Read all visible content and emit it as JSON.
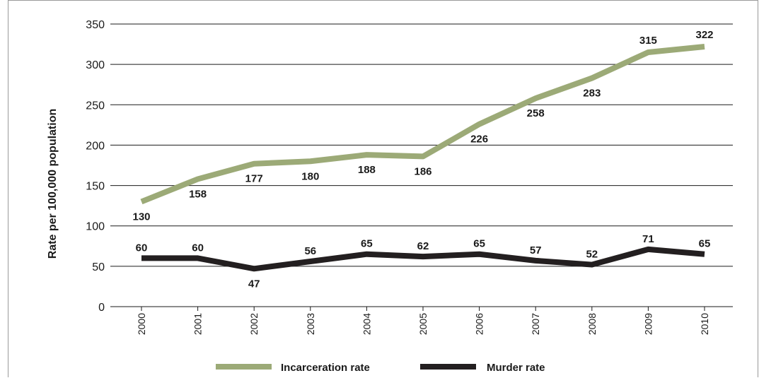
{
  "chart_data": {
    "type": "line",
    "x": [
      "2000",
      "2001",
      "2002",
      "2003",
      "2004",
      "2005",
      "2006",
      "2007",
      "2008",
      "2009",
      "2010"
    ],
    "ylabel": "Rate per 100,000 population",
    "ylim": [
      0,
      350
    ],
    "yticks": [
      "0",
      "50",
      "100",
      "150",
      "200",
      "250",
      "300",
      "350"
    ],
    "grid": "horizontal",
    "legend_position": "bottom",
    "series": [
      {
        "name": "Incarceration rate",
        "color": "#9caa77",
        "values": [
          130,
          158,
          177,
          180,
          188,
          186,
          226,
          258,
          283,
          315,
          322
        ],
        "labels": [
          "130",
          "158",
          "177",
          "180",
          "188",
          "186",
          "226",
          "258",
          "283",
          "315",
          "322"
        ]
      },
      {
        "name": "Murder rate",
        "color": "#231f20",
        "values": [
          60,
          60,
          47,
          56,
          65,
          62,
          65,
          57,
          52,
          71,
          65
        ],
        "labels": [
          "60",
          "60",
          "47",
          "56",
          "65",
          "62",
          "65",
          "57",
          "52",
          "71",
          "65"
        ]
      }
    ]
  }
}
